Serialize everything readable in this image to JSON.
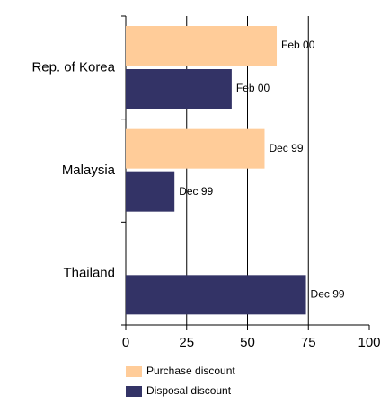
{
  "chart_data": {
    "type": "hbar",
    "categories": [
      "Rep. of Korea",
      "Malaysia",
      "Thailand"
    ],
    "series": [
      {
        "name": "Purchase discount",
        "color": "#ffcc99",
        "values": [
          62,
          57,
          null
        ],
        "date_labels": [
          "Feb 00",
          "Dec 99",
          null
        ]
      },
      {
        "name": "Disposal discount",
        "color": "#333366",
        "values": [
          43.5,
          20,
          74
        ],
        "date_labels": [
          "Feb 00",
          "Dec 99",
          "Dec 99"
        ]
      }
    ],
    "xlim": [
      0,
      100
    ],
    "xticks": [
      0,
      25,
      50,
      75,
      100
    ],
    "grid": true
  }
}
